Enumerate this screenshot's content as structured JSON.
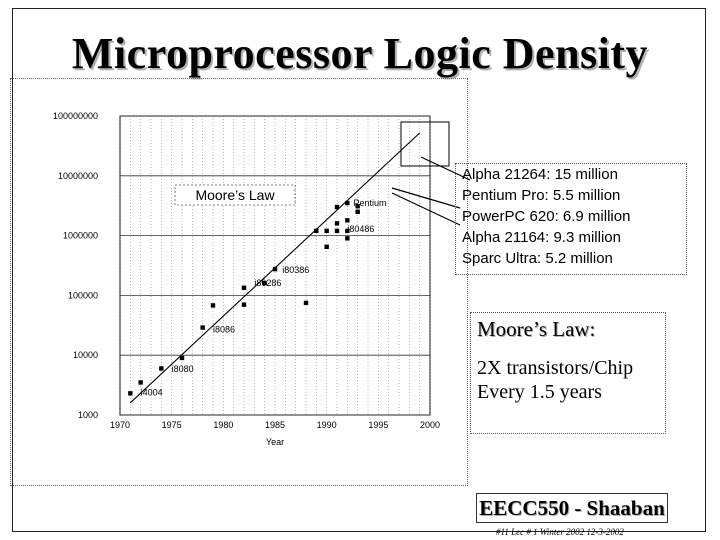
{
  "slide": {
    "title": "Microprocessor Logic Density",
    "callout_lines": [
      "Alpha 21264: 15 million",
      "Pentium Pro: 5.5 million",
      "PowerPC 620: 6.9 million",
      "Alpha 21164: 9.3 million",
      "Sparc Ultra: 5.2 million"
    ],
    "moore_box": {
      "title": "Moore’s Law:",
      "line1": "2X transistors/Chip",
      "line2": "Every 1.5 years"
    },
    "footer": {
      "course": "EECC550 - Shaaban",
      "note": "#11   Lec # 1 Winter 2002  12-3-2002"
    }
  },
  "chart_data": {
    "type": "scatter",
    "title": "",
    "xlabel": "Year",
    "ylabel": "",
    "x_ticks": [
      1970,
      1975,
      1980,
      1985,
      1990,
      1995,
      2000
    ],
    "y_ticks": [
      "1000",
      "10000",
      "100000",
      "1000000",
      "10000000",
      "100000000"
    ],
    "xlim": [
      1970,
      2000
    ],
    "ylim": [
      1000,
      100000000
    ],
    "y_scale": "log",
    "grid": true,
    "series": [
      {
        "points": [
          [
            1971,
            2300
          ],
          [
            1972,
            3500
          ],
          [
            1974,
            6000
          ],
          [
            1976,
            9000
          ],
          [
            1978,
            29000
          ],
          [
            1979,
            68000
          ],
          [
            1982,
            134000
          ],
          [
            1982,
            70000
          ],
          [
            1985,
            275000
          ],
          [
            1984,
            160000
          ],
          [
            1988,
            75000
          ],
          [
            1989,
            1200000
          ],
          [
            1990,
            650000
          ],
          [
            1990,
            1200000
          ],
          [
            1991,
            1200000
          ],
          [
            1991,
            1600000
          ],
          [
            1991,
            3000000
          ],
          [
            1992,
            900000
          ],
          [
            1992,
            1200000
          ],
          [
            1992,
            1800000
          ],
          [
            1992,
            3500000
          ],
          [
            1993,
            3100000
          ],
          [
            1993,
            2500000
          ]
        ]
      },
      {
        "name": "Moore’s Law",
        "line": [
          [
            1971,
            1600
          ],
          [
            1999,
            52000000
          ]
        ]
      }
    ],
    "annotations": [
      "i4004",
      "i8080",
      "i8086",
      "i80286",
      "i80386",
      "i80486",
      "Pentium",
      "Moore’s Law"
    ]
  }
}
